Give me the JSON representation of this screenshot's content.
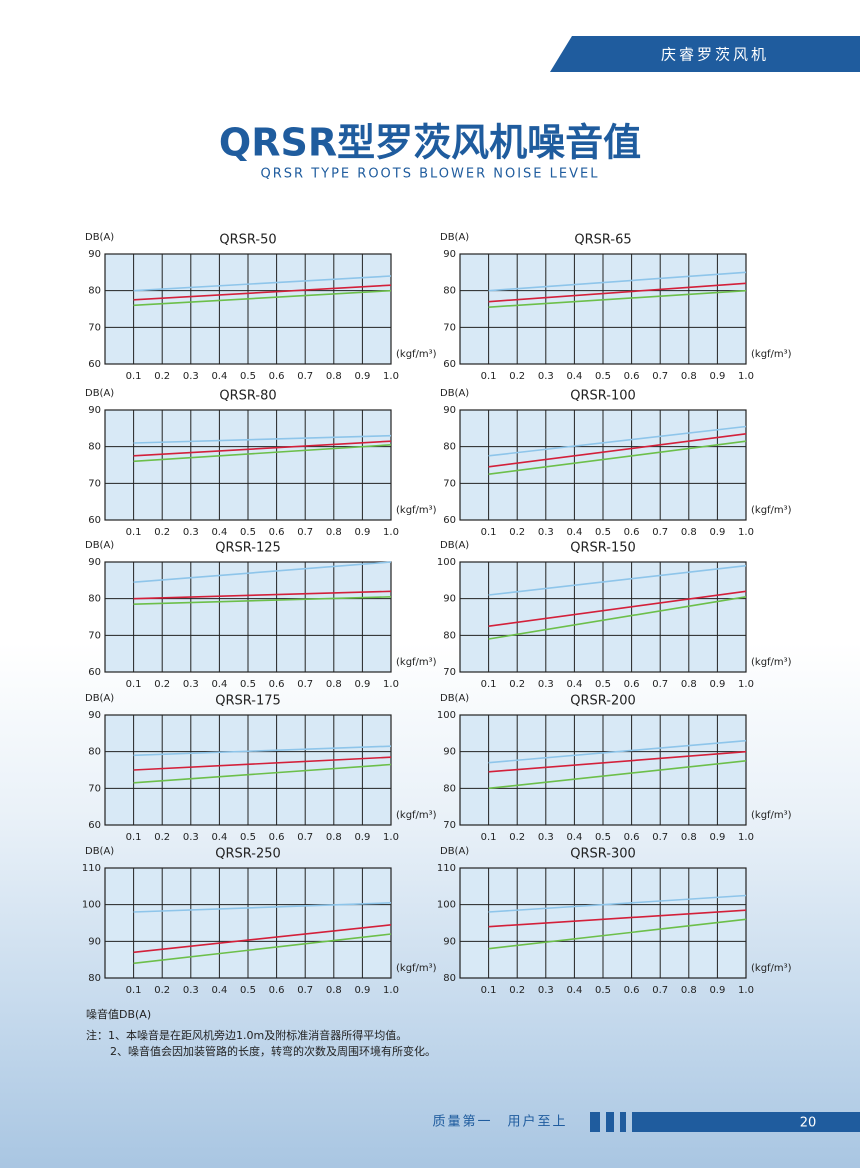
{
  "header": {
    "brand": "庆睿罗茨风机"
  },
  "title": "QRSR型罗茨风机噪音值",
  "subtitle": "QRSR TYPE ROOTS BLOWER NOISE LEVEL",
  "chart_data": [
    {
      "type": "line",
      "title": "QRSR-50",
      "y_label": "DB(A)",
      "x_label": "(kgf/m³)",
      "x": [
        0.1,
        1
      ],
      "xlim": [
        0,
        1
      ],
      "xticks": [
        0.1,
        0.2,
        0.3,
        0.4,
        0.5,
        0.6,
        0.7,
        0.8,
        0.9,
        {
          "value": 1,
          "label": "1.0"
        }
      ],
      "ylim": [
        60,
        90
      ],
      "yticks": [
        60,
        70,
        80,
        90
      ],
      "series": [
        {
          "color": "#8ec5ea",
          "values": [
            80,
            84
          ]
        },
        {
          "color": "#d3203a",
          "values": [
            77.5,
            81.5
          ]
        },
        {
          "color": "#6cbf4a",
          "values": [
            76,
            80
          ]
        }
      ]
    },
    {
      "type": "line",
      "title": "QRSR-65",
      "y_label": "DB(A)",
      "x_label": "(kgf/m³)",
      "x": [
        0.1,
        1
      ],
      "xlim": [
        0,
        1
      ],
      "xticks": [
        0.1,
        0.2,
        0.3,
        0.4,
        0.5,
        0.6,
        0.7,
        0.8,
        0.9,
        {
          "value": 1,
          "label": "1.0"
        }
      ],
      "ylim": [
        60,
        90
      ],
      "yticks": [
        60,
        70,
        80,
        90
      ],
      "series": [
        {
          "color": "#8ec5ea",
          "values": [
            80,
            85
          ]
        },
        {
          "color": "#d3203a",
          "values": [
            77,
            82
          ]
        },
        {
          "color": "#6cbf4a",
          "values": [
            75.5,
            80
          ]
        }
      ]
    },
    {
      "type": "line",
      "title": "QRSR-80",
      "y_label": "DB(A)",
      "x_label": "(kgf/m³)",
      "x": [
        0.1,
        1
      ],
      "xlim": [
        0,
        1
      ],
      "xticks": [
        0.1,
        0.2,
        0.3,
        0.4,
        0.5,
        0.6,
        0.7,
        0.8,
        0.9,
        {
          "value": 1,
          "label": "1.0"
        }
      ],
      "ylim": [
        60,
        90
      ],
      "yticks": [
        60,
        70,
        80,
        90
      ],
      "series": [
        {
          "color": "#8ec5ea",
          "values": [
            81,
            83
          ]
        },
        {
          "color": "#d3203a",
          "values": [
            77.5,
            81.5
          ]
        },
        {
          "color": "#6cbf4a",
          "values": [
            76,
            80.5
          ]
        }
      ]
    },
    {
      "type": "line",
      "title": "QRSR-100",
      "y_label": "DB(A)",
      "x_label": "(kgf/m³)",
      "x": [
        0.1,
        1
      ],
      "xlim": [
        0,
        1
      ],
      "xticks": [
        0.1,
        0.2,
        0.3,
        0.4,
        0.5,
        0.6,
        0.7,
        0.8,
        0.9,
        {
          "value": 1,
          "label": "1.0"
        }
      ],
      "ylim": [
        60,
        90
      ],
      "yticks": [
        60,
        70,
        80,
        90
      ],
      "series": [
        {
          "color": "#8ec5ea",
          "values": [
            77.5,
            85.5
          ]
        },
        {
          "color": "#d3203a",
          "values": [
            74.5,
            83.5
          ]
        },
        {
          "color": "#6cbf4a",
          "values": [
            72.5,
            81.5
          ]
        }
      ]
    },
    {
      "type": "line",
      "title": "QRSR-125",
      "y_label": "DB(A)",
      "x_label": "(kgf/m³)",
      "x": [
        0.1,
        1
      ],
      "xlim": [
        0,
        1
      ],
      "xticks": [
        0.1,
        0.2,
        0.3,
        0.4,
        0.5,
        0.6,
        0.7,
        0.8,
        0.9,
        {
          "value": 1,
          "label": "1.0"
        }
      ],
      "ylim": [
        60,
        90
      ],
      "yticks": [
        60,
        70,
        80,
        90
      ],
      "series": [
        {
          "color": "#8ec5ea",
          "values": [
            84.5,
            90
          ]
        },
        {
          "color": "#d3203a",
          "values": [
            80,
            82
          ]
        },
        {
          "color": "#6cbf4a",
          "values": [
            78.5,
            80.5
          ]
        }
      ]
    },
    {
      "type": "line",
      "title": "QRSR-150",
      "y_label": "DB(A)",
      "x_label": "(kgf/m³)",
      "x": [
        0.1,
        1
      ],
      "xlim": [
        0,
        1
      ],
      "xticks": [
        0.1,
        0.2,
        0.3,
        0.4,
        0.5,
        0.6,
        0.7,
        0.8,
        0.9,
        {
          "value": 1,
          "label": "1.0"
        }
      ],
      "ylim": [
        70,
        100
      ],
      "yticks": [
        70,
        80,
        90,
        100
      ],
      "series": [
        {
          "color": "#8ec5ea",
          "values": [
            91,
            99
          ]
        },
        {
          "color": "#d3203a",
          "values": [
            82.5,
            92
          ]
        },
        {
          "color": "#6cbf4a",
          "values": [
            79,
            90.5
          ]
        }
      ]
    },
    {
      "type": "line",
      "title": "QRSR-175",
      "y_label": "DB(A)",
      "x_label": "(kgf/m³)",
      "x": [
        0.1,
        1
      ],
      "xlim": [
        0,
        1
      ],
      "xticks": [
        0.1,
        0.2,
        0.3,
        0.4,
        0.5,
        0.6,
        0.7,
        0.8,
        0.9,
        {
          "value": 1,
          "label": "1.0"
        }
      ],
      "ylim": [
        60,
        90
      ],
      "yticks": [
        60,
        70,
        80,
        90
      ],
      "series": [
        {
          "color": "#8ec5ea",
          "values": [
            79,
            81.5
          ]
        },
        {
          "color": "#d3203a",
          "values": [
            75,
            78.5
          ]
        },
        {
          "color": "#6cbf4a",
          "values": [
            71.5,
            76.5
          ]
        }
      ]
    },
    {
      "type": "line",
      "title": "QRSR-200",
      "y_label": "DB(A)",
      "x_label": "(kgf/m³)",
      "x": [
        0.1,
        1
      ],
      "xlim": [
        0,
        1
      ],
      "xticks": [
        0.1,
        0.2,
        0.3,
        0.4,
        0.5,
        0.6,
        0.7,
        0.8,
        0.9,
        {
          "value": 1,
          "label": "1.0"
        }
      ],
      "ylim": [
        70,
        100
      ],
      "yticks": [
        70,
        80,
        90,
        100
      ],
      "series": [
        {
          "color": "#8ec5ea",
          "values": [
            87,
            93
          ]
        },
        {
          "color": "#d3203a",
          "values": [
            84.5,
            90
          ]
        },
        {
          "color": "#6cbf4a",
          "values": [
            80,
            87.5
          ]
        }
      ]
    },
    {
      "type": "line",
      "title": "QRSR-250",
      "y_label": "DB(A)",
      "x_label": "(kgf/m³)",
      "x": [
        0.1,
        1
      ],
      "xlim": [
        0,
        1
      ],
      "xticks": [
        0.1,
        0.2,
        0.3,
        0.4,
        0.5,
        0.6,
        0.7,
        0.8,
        0.9,
        {
          "value": 1,
          "label": "1.0"
        }
      ],
      "ylim": [
        80,
        110
      ],
      "yticks": [
        80,
        90,
        100,
        110
      ],
      "series": [
        {
          "color": "#8ec5ea",
          "values": [
            98,
            100.5
          ]
        },
        {
          "color": "#d3203a",
          "values": [
            87,
            94.5
          ]
        },
        {
          "color": "#6cbf4a",
          "values": [
            84,
            92
          ]
        }
      ]
    },
    {
      "type": "line",
      "title": "QRSR-300",
      "y_label": "DB(A)",
      "x_label": "(kgf/m³)",
      "x": [
        0.1,
        1
      ],
      "xlim": [
        0,
        1
      ],
      "xticks": [
        0.1,
        0.2,
        0.3,
        0.4,
        0.5,
        0.6,
        0.7,
        0.8,
        0.9,
        {
          "value": 1,
          "label": "1.0"
        }
      ],
      "ylim": [
        80,
        110
      ],
      "yticks": [
        80,
        90,
        100,
        110
      ],
      "series": [
        {
          "color": "#8ec5ea",
          "values": [
            98,
            102.5
          ]
        },
        {
          "color": "#d3203a",
          "values": [
            94,
            98.5
          ]
        },
        {
          "color": "#6cbf4a",
          "values": [
            88,
            96
          ]
        }
      ]
    }
  ],
  "notes": {
    "heading": "噪音值DB(A)",
    "lines": [
      "注：1、本噪音是在距风机旁边1.0m及附标准消音器所得平均值。",
      "2、噪音值会因加装管路的长度，转弯的次数及周围环境有所变化。"
    ]
  },
  "footer": {
    "slogan": "质量第一　用户至上",
    "page": "20"
  }
}
